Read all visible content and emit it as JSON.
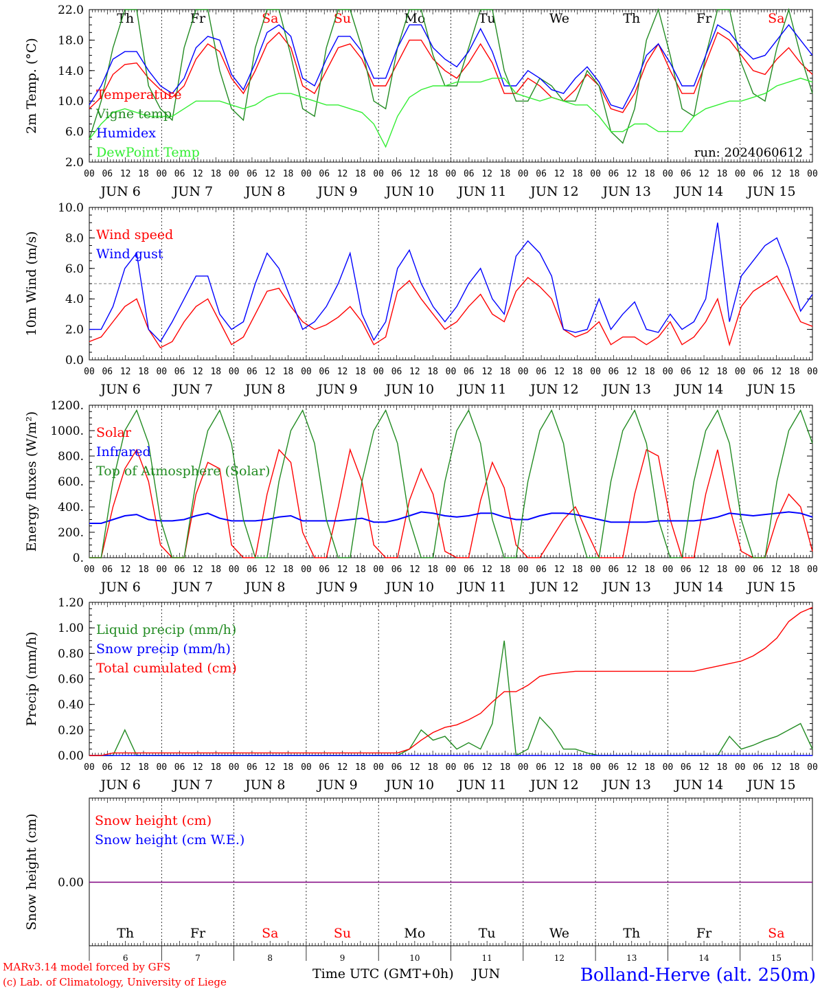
{
  "colors": {
    "red": "#ff0000",
    "green": "#228b22",
    "blue": "#0000ff",
    "lightgreen": "#33ee33",
    "purple": "#800080",
    "black": "#000000"
  },
  "x_axis": {
    "hour_ticks": [
      "00",
      "06",
      "12",
      "18"
    ],
    "day_labels": [
      "JUN  6",
      "JUN  7",
      "JUN  8",
      "JUN  9",
      "JUN 10",
      "JUN 11",
      "JUN 12",
      "JUN 13",
      "JUN 14",
      "JUN 15"
    ],
    "weekdays": [
      {
        "label": "Th",
        "color": "black"
      },
      {
        "label": "Fr",
        "color": "black"
      },
      {
        "label": "Sa",
        "color": "red"
      },
      {
        "label": "Su",
        "color": "red"
      },
      {
        "label": "Mo",
        "color": "black"
      },
      {
        "label": "Tu",
        "color": "black"
      },
      {
        "label": "We",
        "color": "black"
      },
      {
        "label": "Th",
        "color": "black"
      },
      {
        "label": "Fr",
        "color": "black"
      },
      {
        "label": "Sa",
        "color": "red"
      }
    ],
    "day_numbers": [
      "6",
      "7",
      "8",
      "9",
      "10",
      "11",
      "12",
      "13",
      "14",
      "15"
    ],
    "xlabel": "Time UTC (GMT+0h)",
    "month": "JUN"
  },
  "footer": {
    "credit_line1": "MARv3.14 model forced by GFS",
    "credit_line2": "(c) Lab. of Climatology, University of Liege",
    "station": "Bolland-Herve (alt. 250m)"
  },
  "chart_data": [
    {
      "type": "line",
      "ylabel": "2m Temp. (°C)",
      "ylim": [
        2,
        22
      ],
      "yticks": [
        "2.0",
        "6.0",
        "10.0",
        "14.0",
        "18.0",
        "22.0"
      ],
      "annotation": "run: 2024060612",
      "series": [
        {
          "name": "Temperature",
          "color": "red",
          "values": [
            9,
            10.5,
            13.5,
            14.8,
            15,
            13,
            11.5,
            10.5,
            12,
            15.5,
            17.5,
            16.5,
            13,
            11,
            14,
            17.5,
            19,
            17,
            12,
            11,
            14,
            17,
            17.5,
            15.5,
            12,
            12,
            15,
            18,
            18,
            15.5,
            14,
            13,
            15,
            17.5,
            15,
            11,
            11,
            13,
            12,
            10.5,
            10,
            11.5,
            13.5,
            12,
            9,
            8.5,
            11,
            15,
            17.5,
            14,
            11,
            11,
            15,
            19,
            18,
            16,
            14,
            13.5,
            15.5,
            17,
            15,
            13.5
          ]
        },
        {
          "name": "Vigne temp",
          "color": "green",
          "values": [
            5,
            10,
            17,
            22,
            22,
            12,
            9,
            7.5,
            17,
            22,
            22,
            14,
            9,
            7.5,
            17,
            22,
            22,
            16,
            9,
            8,
            17,
            22,
            22,
            17,
            10,
            9,
            17,
            22,
            22,
            16,
            12,
            12,
            17,
            22,
            22,
            14,
            10,
            10,
            13,
            12,
            10,
            10,
            14,
            12,
            6,
            4.5,
            9,
            18,
            22,
            16,
            9,
            8,
            16,
            22,
            22,
            15,
            11,
            10,
            17,
            22,
            16,
            11
          ]
        },
        {
          "name": "Humidex",
          "color": "blue",
          "values": [
            9.5,
            12,
            15.5,
            16.5,
            16.5,
            14,
            12,
            11,
            13,
            17,
            18.5,
            18,
            13.5,
            11.5,
            15,
            19,
            20,
            18.5,
            13,
            12,
            15.5,
            18.5,
            18.5,
            16.5,
            13,
            13,
            17,
            20,
            20,
            17,
            15.5,
            14.5,
            16.5,
            19.5,
            16.5,
            12,
            12,
            14,
            13,
            11.5,
            11,
            13,
            14.5,
            12.5,
            9.5,
            9,
            12,
            16,
            17.5,
            15,
            12,
            12,
            16,
            20,
            19,
            17,
            15.5,
            16,
            18,
            20,
            18,
            16
          ]
        },
        {
          "name": "DewPoint Temp",
          "color": "lightgreen",
          "values": [
            5,
            7,
            8.5,
            9,
            8.5,
            8,
            8,
            8,
            9,
            10,
            10,
            10,
            9.5,
            9,
            9.5,
            10.5,
            11,
            11,
            10.5,
            10,
            9.5,
            9.5,
            9,
            8.5,
            7,
            4,
            8,
            10.5,
            11.5,
            12,
            12,
            12.5,
            12.5,
            12.5,
            13,
            13,
            11,
            10.5,
            10,
            10.5,
            10,
            9.5,
            9.5,
            8,
            6,
            6,
            7,
            7,
            6,
            6,
            6,
            8,
            9,
            9.5,
            10,
            10,
            10.5,
            11,
            12,
            12.5,
            13,
            12.5
          ]
        }
      ]
    },
    {
      "type": "line",
      "ylabel": "10m Wind (m/s)",
      "ylim": [
        0,
        10
      ],
      "yticks": [
        "0.0",
        "2.0",
        "4.0",
        "6.0",
        "8.0",
        "10.0"
      ],
      "reference_line": 5,
      "series": [
        {
          "name": "Wind speed",
          "color": "red",
          "values": [
            1.2,
            1.5,
            2.5,
            3.5,
            4,
            2,
            0.8,
            1.2,
            2.5,
            3.5,
            4,
            2.5,
            1,
            1.5,
            3,
            4.5,
            4.7,
            3.5,
            2.5,
            2,
            2.3,
            2.8,
            3.5,
            2.5,
            1,
            1.5,
            4.5,
            5.2,
            4,
            3,
            2,
            2.5,
            3.5,
            4.3,
            3,
            2.5,
            4.5,
            5.4,
            4.8,
            4,
            2,
            1.5,
            1.8,
            2.5,
            1,
            1.5,
            1.5,
            1,
            1.5,
            2.5,
            1,
            1.5,
            2.5,
            4,
            1,
            3.5,
            4.5,
            5,
            5.5,
            4,
            2.5,
            2.2
          ]
        },
        {
          "name": "Wind gust",
          "color": "blue",
          "values": [
            2,
            2,
            3.5,
            6,
            7,
            2,
            1.2,
            2.5,
            4,
            5.5,
            5.5,
            3,
            2,
            2.5,
            5,
            7,
            6,
            4,
            2,
            2.5,
            3.5,
            5,
            7,
            3,
            1.3,
            2.5,
            6,
            7.2,
            5,
            3.5,
            2.5,
            3.5,
            5,
            6,
            4,
            3,
            6.8,
            7.8,
            7,
            5.5,
            2,
            1.8,
            2,
            4,
            2,
            3,
            3.8,
            2,
            1.8,
            3,
            2,
            2.5,
            4,
            9,
            2.5,
            5.5,
            6.5,
            7.5,
            8,
            6,
            3.2,
            4.3
          ]
        }
      ]
    },
    {
      "type": "line",
      "ylabel": "Energy fluxes (W/m²)",
      "ylim": [
        0,
        1200
      ],
      "yticks": [
        "0.",
        "200.",
        "400.",
        "600.",
        "800.",
        "1000.",
        "1200."
      ],
      "series": [
        {
          "name": "Solar",
          "color": "red",
          "values": [
            0,
            0,
            400,
            700,
            850,
            600,
            100,
            0,
            0,
            500,
            750,
            700,
            100,
            0,
            0,
            500,
            850,
            750,
            200,
            0,
            0,
            400,
            850,
            600,
            100,
            0,
            0,
            450,
            700,
            500,
            50,
            0,
            0,
            450,
            750,
            550,
            100,
            0,
            0,
            150,
            300,
            400,
            200,
            0,
            0,
            0,
            500,
            850,
            800,
            300,
            0,
            0,
            500,
            850,
            400,
            50,
            0,
            0,
            300,
            500,
            400,
            50
          ]
        },
        {
          "name": "Infrared",
          "color": "blue",
          "values": [
            270,
            270,
            300,
            330,
            340,
            300,
            290,
            290,
            300,
            330,
            350,
            310,
            290,
            290,
            290,
            300,
            320,
            330,
            290,
            290,
            290,
            290,
            300,
            310,
            280,
            280,
            300,
            330,
            360,
            350,
            330,
            320,
            330,
            350,
            350,
            320,
            300,
            300,
            330,
            350,
            350,
            340,
            320,
            300,
            280,
            280,
            280,
            280,
            290,
            290,
            290,
            290,
            300,
            320,
            350,
            340,
            330,
            340,
            350,
            360,
            350,
            320
          ]
        },
        {
          "name": "Top of Atmosphere (Solar)",
          "color": "green",
          "values": [
            0,
            0,
            600,
            1000,
            1160,
            900,
            300,
            0,
            0,
            600,
            1000,
            1160,
            900,
            300,
            0,
            0,
            600,
            1000,
            1160,
            900,
            300,
            0,
            0,
            600,
            1000,
            1160,
            900,
            300,
            0,
            0,
            600,
            1000,
            1160,
            900,
            300,
            0,
            0,
            600,
            1000,
            1160,
            900,
            300,
            0,
            0,
            600,
            1000,
            1160,
            900,
            300,
            0,
            0,
            600,
            1000,
            1160,
            900,
            300,
            0,
            0,
            600,
            1000,
            1160,
            900
          ]
        }
      ]
    },
    {
      "type": "line",
      "ylabel": "Precip (mm/h)",
      "ylim": [
        0,
        1.2
      ],
      "yticks": [
        "0.00",
        "0.20",
        "0.40",
        "0.60",
        "0.80",
        "1.00",
        "1.20"
      ],
      "series": [
        {
          "name": "Liquid precip (mm/h)",
          "color": "green",
          "values": [
            0,
            0,
            0,
            0.2,
            0,
            0,
            0,
            0,
            0,
            0,
            0,
            0,
            0,
            0,
            0,
            0,
            0,
            0,
            0,
            0,
            0,
            0,
            0,
            0,
            0,
            0,
            0,
            0.05,
            0.2,
            0.12,
            0.15,
            0.05,
            0.1,
            0.05,
            0.25,
            0.9,
            0,
            0.05,
            0.3,
            0.2,
            0.05,
            0.05,
            0.02,
            0,
            0,
            0,
            0,
            0,
            0,
            0,
            0,
            0,
            0,
            0,
            0.15,
            0.05,
            0.08,
            0.12,
            0.15,
            0.2,
            0.25,
            0.05
          ]
        },
        {
          "name": "Snow precip (mm/h)",
          "color": "blue",
          "values": [
            0,
            0,
            0,
            0,
            0,
            0,
            0,
            0,
            0,
            0,
            0,
            0,
            0,
            0,
            0,
            0,
            0,
            0,
            0,
            0,
            0,
            0,
            0,
            0,
            0,
            0,
            0,
            0,
            0,
            0,
            0,
            0,
            0,
            0,
            0,
            0,
            0,
            0,
            0,
            0,
            0,
            0,
            0,
            0,
            0,
            0,
            0,
            0,
            0,
            0,
            0,
            0,
            0,
            0,
            0,
            0,
            0,
            0,
            0,
            0,
            0,
            0
          ]
        },
        {
          "name": "Total cumulated (cm)",
          "color": "red",
          "values": [
            0,
            0,
            0.02,
            0.02,
            0.02,
            0.02,
            0.02,
            0.02,
            0.02,
            0.02,
            0.02,
            0.02,
            0.02,
            0.02,
            0.02,
            0.02,
            0.02,
            0.02,
            0.02,
            0.02,
            0.02,
            0.02,
            0.02,
            0.02,
            0.02,
            0.02,
            0.02,
            0.05,
            0.12,
            0.18,
            0.22,
            0.24,
            0.28,
            0.33,
            0.42,
            0.5,
            0.5,
            0.55,
            0.62,
            0.64,
            0.65,
            0.66,
            0.66,
            0.66,
            0.66,
            0.66,
            0.66,
            0.66,
            0.66,
            0.66,
            0.66,
            0.66,
            0.68,
            0.7,
            0.72,
            0.74,
            0.78,
            0.84,
            0.92,
            1.05,
            1.12,
            1.16
          ]
        }
      ]
    },
    {
      "type": "line",
      "ylabel": "Snow height (cm)",
      "yticks": [
        "0.00"
      ],
      "series": [
        {
          "name": "Snow height (cm)",
          "color": "red",
          "values": [
            0,
            0
          ]
        },
        {
          "name": "Snow height (cm W.E.)",
          "color": "blue",
          "values": [
            0,
            0
          ]
        }
      ]
    }
  ]
}
